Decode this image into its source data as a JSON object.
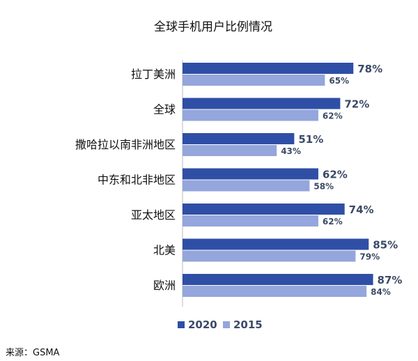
{
  "chart_data": {
    "type": "bar",
    "orientation": "horizontal",
    "title": "全球手机用户比例情况",
    "categories": [
      "拉丁美洲",
      "全球",
      "撒哈拉以南非洲地区",
      "中东和北非地区",
      "亚太地区",
      "北美",
      "欧洲"
    ],
    "series": [
      {
        "name": "2020",
        "color": "#2f4fa6",
        "values": [
          78,
          72,
          51,
          62,
          74,
          85,
          87
        ],
        "labels": [
          "78%",
          "72%",
          "51%",
          "62%",
          "74%",
          "85%",
          "87%"
        ]
      },
      {
        "name": "2015",
        "color": "#94a6dc",
        "values": [
          65,
          62,
          43,
          58,
          62,
          79,
          84
        ],
        "labels": [
          "65%",
          "62%",
          "43%",
          "58%",
          "62%",
          "79%",
          "84%"
        ]
      }
    ],
    "legend_position": "bottom",
    "grid": false
  },
  "source": "来源：GSMA"
}
